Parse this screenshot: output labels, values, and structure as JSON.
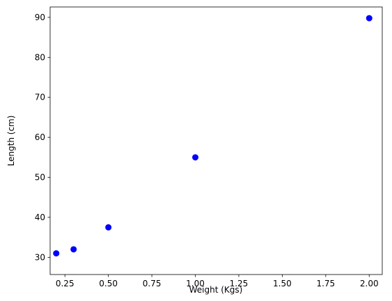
{
  "chart_data": {
    "type": "scatter",
    "x_label": "Weight (Kgs)",
    "y_label": "Length (cm)",
    "x": [
      0.2,
      0.3,
      0.5,
      1.0,
      2.0
    ],
    "values": [
      31,
      32,
      37.5,
      55,
      89.8
    ],
    "color": "#0000ff",
    "xlim": [
      0.165,
      2.075
    ],
    "ylim": [
      25.7,
      92.6
    ],
    "xticks": [
      0.25,
      {
        "value": 0.5,
        "label": "0.50"
      },
      0.75,
      {
        "value": 1.0,
        "label": "1.00"
      },
      1.25,
      {
        "value": 1.5,
        "label": "1.50"
      },
      1.75,
      {
        "value": 2.0,
        "label": "2.00"
      }
    ],
    "yticks": [
      30,
      40,
      50,
      60,
      70,
      80,
      90
    ]
  }
}
